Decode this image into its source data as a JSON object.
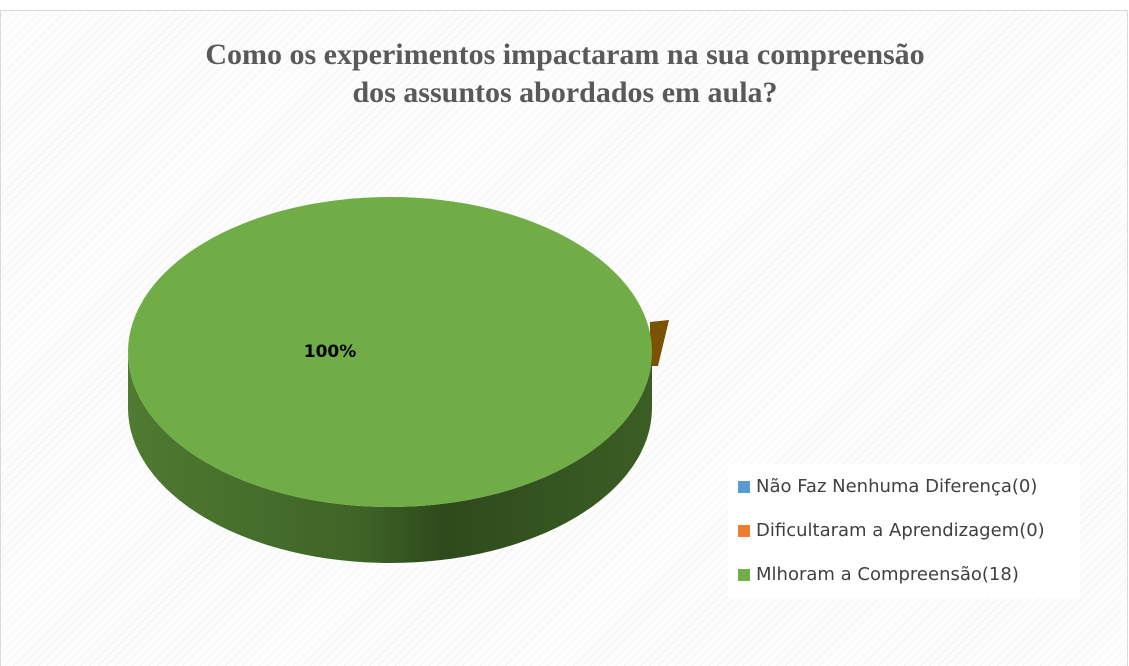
{
  "chart_data": {
    "type": "pie",
    "title": "Como os experimentos impactaram na sua compreensão dos assuntos abordados em aula?",
    "categories": [
      "Não Faz Nenhuma Diferença(0)",
      "Dificultaram a Aprendizagem(0)",
      "Mlhoram a Compreensão(18)"
    ],
    "values": [
      0,
      0,
      100
    ],
    "value_labels": [
      null,
      null,
      "100%"
    ],
    "colors": [
      "#5b9bd5",
      "#ed7d31",
      "#70ad47"
    ],
    "legend": "right"
  }
}
